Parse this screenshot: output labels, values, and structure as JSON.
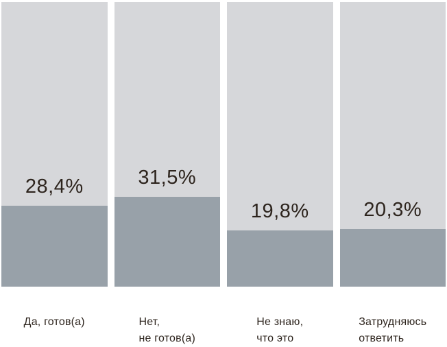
{
  "chart_data": {
    "type": "bar",
    "title": "",
    "orientation": "vertical",
    "unit": "%",
    "ylim": [
      0,
      100
    ],
    "grid": false,
    "legend": false,
    "categories": [
      "Да, готов(а)",
      "Нет,\nне готов(а)",
      "Не знаю,\nчто это",
      "Затрудняюсь\nответить"
    ],
    "values": [
      28.4,
      31.5,
      19.8,
      20.3
    ],
    "display_values": [
      "28,4%",
      "31,5%",
      "19,8%",
      "20,3%"
    ],
    "colors": {
      "track": "#d6d7da",
      "fill": "#98a1a9",
      "text": "#2d241d",
      "background": "#ffffff"
    }
  }
}
